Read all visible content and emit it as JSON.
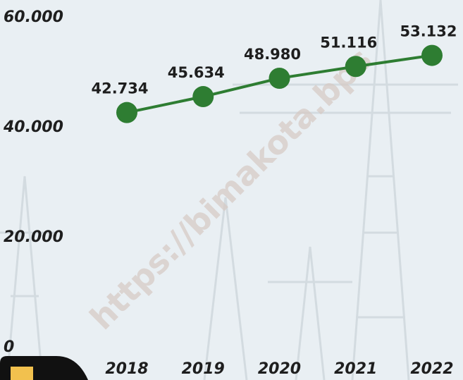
{
  "chart_data": {
    "type": "line",
    "x": [
      "2018",
      "2019",
      "2020",
      "2021",
      "2022"
    ],
    "series": [
      {
        "color": "#2e7d32",
        "values": [
          42734,
          45634,
          48980,
          51116,
          53132
        ],
        "value_labels": [
          "42.734",
          "45.634",
          "48.980",
          "51.116",
          "53.132"
        ]
      }
    ],
    "ylim": [
      0,
      60000
    ],
    "yticks": [
      0,
      {
        "value": 20000,
        "label": "20.000"
      },
      {
        "value": 40000,
        "label": "40.000"
      },
      {
        "value": 60000,
        "label": "60.000"
      }
    ],
    "grid": false,
    "watermark": "https://bimakota.bps"
  }
}
